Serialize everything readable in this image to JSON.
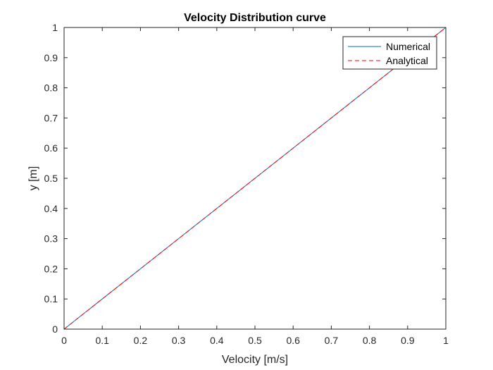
{
  "chart_data": {
    "type": "line",
    "title": "Velocity Distribution curve",
    "xlabel": "Velocity [m/s]",
    "ylabel": "y [m]",
    "xlim": [
      0,
      1
    ],
    "ylim": [
      0,
      1
    ],
    "xticks": [
      "0",
      "0.1",
      "0.2",
      "0.3",
      "0.4",
      "0.5",
      "0.6",
      "0.7",
      "0.8",
      "0.9",
      "1"
    ],
    "yticks": [
      "0",
      "0.1",
      "0.2",
      "0.3",
      "0.4",
      "0.5",
      "0.6",
      "0.7",
      "0.8",
      "0.9",
      "1"
    ],
    "grid": false,
    "legend_position": "top-right",
    "series": [
      {
        "name": "Numerical",
        "color": "#0072BD",
        "style": "solid",
        "x": [
          0,
          1
        ],
        "y": [
          0,
          1
        ]
      },
      {
        "name": "Analytical",
        "color": "#FF0000",
        "style": "dashed",
        "x": [
          0,
          1
        ],
        "y": [
          0,
          1
        ]
      }
    ]
  }
}
